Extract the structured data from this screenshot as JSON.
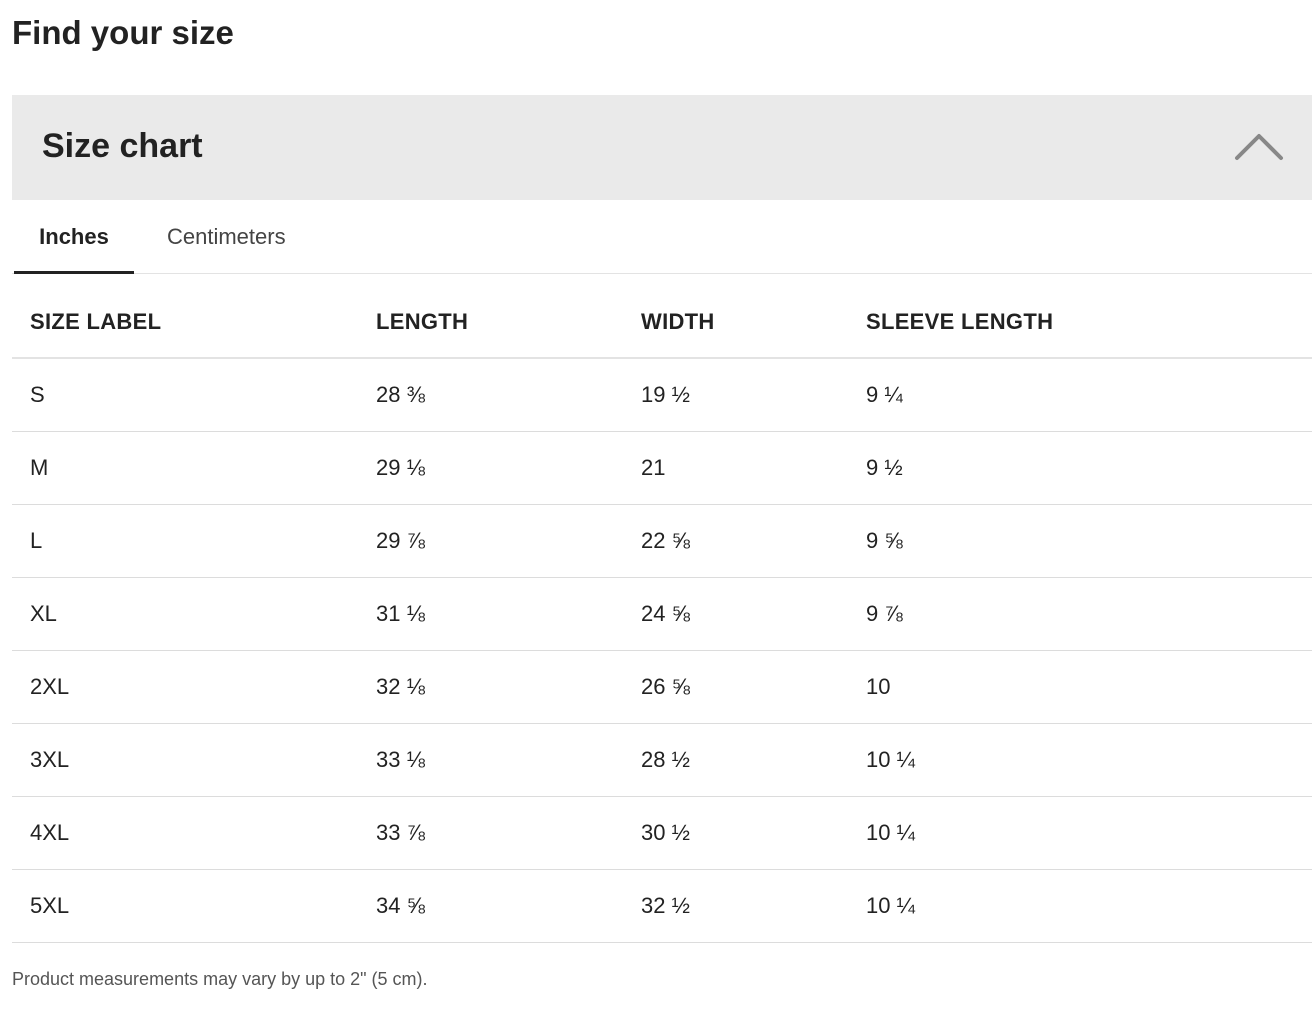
{
  "page": {
    "title": "Find your size"
  },
  "accordion": {
    "title": "Size chart",
    "expanded": true,
    "toggle_icon": "chevron-up-icon"
  },
  "tabs": [
    {
      "label": "Inches",
      "selected": true
    },
    {
      "label": "Centimeters",
      "selected": false
    }
  ],
  "table": {
    "columns": [
      "SIZE LABEL",
      "LENGTH",
      "WIDTH",
      "SLEEVE LENGTH"
    ],
    "rows": [
      [
        "S",
        "28 ⅜",
        "19 ½",
        "9 ¼"
      ],
      [
        "M",
        "29 ⅛",
        "21",
        "9 ½"
      ],
      [
        "L",
        "29 ⅞",
        "22 ⅝",
        "9 ⅝"
      ],
      [
        "XL",
        "31 ⅛",
        "24 ⅝",
        "9 ⅞"
      ],
      [
        "2XL",
        "32 ⅛",
        "26 ⅝",
        "10"
      ],
      [
        "3XL",
        "33 ⅛",
        "28 ½",
        "10 ¼"
      ],
      [
        "4XL",
        "33 ⅞",
        "30 ½",
        "10 ¼"
      ],
      [
        "5XL",
        "34 ⅝",
        "32 ½",
        "10 ¼"
      ]
    ]
  },
  "footnote": "Product measurements may vary by up to 2\" (5 cm).",
  "colors": {
    "header_bg": "#eaeaea",
    "text": "#222222",
    "divider": "#dcdcdc"
  }
}
